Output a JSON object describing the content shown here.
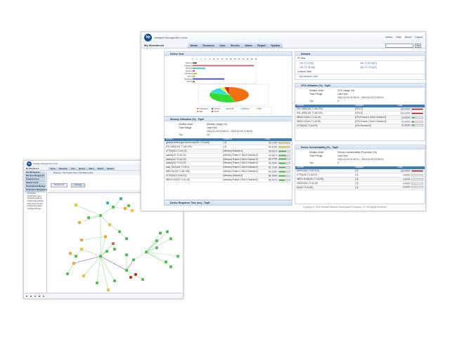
{
  "front": {
    "app_title": "Intelligent Management Center",
    "user_links": [
      "admin",
      "Help",
      "About",
      "Logout"
    ],
    "workbench": "My Workbench",
    "tabs": [
      "Home",
      "Resource",
      "User",
      "Service",
      "Alarm",
      "Report",
      "System"
    ],
    "search_button": "Go",
    "device_view": {
      "title": "Device View",
      "chart_data": {
        "type": "bar",
        "orientation": "horizontal",
        "categories": [
          "Routers",
          "Switches",
          "Servers",
          "Security",
          "Wireless",
          "Voice",
          "Desktops",
          "Others"
        ],
        "values": [
          2,
          29,
          6,
          1,
          2,
          1,
          15,
          1
        ],
        "xlim": [
          0,
          30
        ],
        "ticks": [
          0,
          2,
          4,
          6,
          8,
          10,
          12,
          14,
          16,
          18,
          20,
          22,
          24,
          26,
          28,
          30
        ],
        "colors": [
          "#555555",
          "#c06070",
          "#40c0c0",
          "#c040c0",
          "#c0c040",
          "#60c060",
          "#4040c0",
          "#c04040"
        ]
      },
      "pie": {
        "type": "pie",
        "slices": [
          {
            "name": "Major",
            "value": 45,
            "color": "#f07010"
          },
          {
            "name": "Normal",
            "value": 35,
            "color": "#30dd30"
          },
          {
            "name": "Warning",
            "value": 12,
            "color": "#30e0e0"
          },
          {
            "name": "Minor",
            "value": 4,
            "color": "#f0f040"
          },
          {
            "name": "Critical",
            "value": 4,
            "color": "#e02020"
          }
        ]
      },
      "legend": [
        {
          "name": "Unmanaged",
          "color": "#888888"
        },
        {
          "name": "Unknown",
          "color": "#3030c0"
        },
        {
          "name": "Normal",
          "color": "#30dd30"
        },
        {
          "name": "Warning",
          "color": "#30e0e0"
        },
        {
          "name": "Minor",
          "color": "#f0f040"
        },
        {
          "name": "Major",
          "color": "#f07010"
        },
        {
          "name": "Critical",
          "color": "#e02020"
        }
      ]
    },
    "memory": {
      "title": "Memory Utilization (%) - TopN",
      "monitor_label": "Monitor Index",
      "monitor": "Memory Usage (%)",
      "range_label": "Time Range",
      "range": "Last Hour",
      "range_detail": "2010-11-03 11:00:01 - 2010-11-03 12:00:01",
      "top_label": "Top",
      "top": "10",
      "columns": [
        "Device",
        "Instance",
        "Data"
      ],
      "rows": [
        [
          "globalz.fedora.gov.3com.com(161.71.64.84)",
          "[-3]",
          "92.179%",
          92.2
        ],
        [
          "ESL-MDS(161.71.64.200)",
          "[-3]",
          "90.523%",
          90.5
        ],
        [
          "s7700(161.71.64.22)",
          "[Memory:Subslot:4]",
          "68.951%",
          69
        ],
        [
          "pasta(161.71.64.23)",
          "[Memory:Frame:1 Slot:0 Subslot:0]",
          "67.661%",
          67.7
        ],
        [
          "pasta(161.71.64.23)",
          "[Memory:Frame:3 Slot:0 Subslot:0]",
          "64.675%",
          64.7
        ],
        [
          "pasta(161.71.64.23)",
          "[Memory:Frame:2 Slot:0 Subslot:0]",
          "63.263%",
          63.3
        ],
        [
          "sara_55.2(161.71.78.1)",
          "[Memory:Frame:1 Slot:0 Subslot:0]",
          "61.723%",
          61.7
        ],
        [
          "5500-EI(161.71.64.198)",
          "[Memory:Frame:1 Slot:0 Subslot:0]",
          "60.333%",
          60.3
        ],
        [
          "s7700(161.71.64.22)",
          "[Memory:Subslot:5]",
          "56.784%",
          56.8
        ],
        [
          "5500G-EI(161.71.64.24)",
          "[Memory:Frame:2 Slot:0 Subslot:0]",
          "55.267%",
          55.3
        ]
      ]
    },
    "response_title": "Device Response Time (ms) - TopN",
    "network": {
      "title": "Network",
      "ip_view": "IP View",
      "ips": [
        "161.71.0.0[3]",
        "161.71.64.0[47]",
        "161.71.78.0[6]",
        "161.71.79.0[21]"
      ],
      "custom_view": "Custom View",
      "custom": "My Network View"
    },
    "cpu": {
      "title": "CPU Utilization (%) - TopN",
      "monitor_label": "Monitor Index",
      "monitor": "CPU Usage (%)",
      "range_label": "Time Range",
      "range": "Last Hour",
      "range_detail": "2010-11-03 11:00:01 - 2010-11-03 12:00:01",
      "top_label": "Top",
      "top": "5",
      "columns": [
        "Device",
        "Instance",
        "Data"
      ],
      "rows": [
        [
          "ESL-MDS(161.71.64.200)",
          "[CPU:2]",
          "100.000%",
          100
        ],
        [
          "ESL-MDS(161.71.64.200)",
          "[CPU:3]",
          "100.000%",
          100
        ],
        [
          "5500G-EI(161.71.64.24)",
          "[CPU:Frame:2 Slot:0 Subslot:0]",
          "23.833%",
          23.8
        ],
        [
          "5500G-EI(161.71.64.24)",
          "[CPU:Frame:1 Slot:0 Subslot:0]",
          "22.000%",
          22
        ],
        [
          "s7700(161.71.64.22)",
          "[CPU:Subslot:5]",
          "21.833%",
          21.8
        ]
      ]
    },
    "unreach": {
      "title": "Device Unreachability (%) - TopN",
      "monitor_label": "Monitor Index",
      "monitor": "Device Unreachability Proportion (%)",
      "range_label": "Time Range",
      "range": "Last Hour",
      "range_detail": "2010-11-03 11:00:01 - 2010-11-03 12:00:01",
      "top_label": "Top",
      "top": "5",
      "columns": [
        "Device",
        "Instance",
        "Data"
      ],
      "rows": [
        [
          "NMSG(161.71.64.101)",
          "[-3]",
          "100.000%",
          100
        ],
        [
          "s7700(161.71.64.22)",
          "[-3]",
          "0.000%",
          0
        ],
        [
          "4800 L3LAB(161.71.64.50)",
          "[-3]",
          "0.000%",
          0
        ],
        [
          "4200G(161.71.64.42)",
          "[-3]",
          "0.000%",
          0
        ],
        [
          "i3(161.71.64.52)",
          "[-3]",
          "0.000%",
          0
        ]
      ]
    },
    "footer": "Copyright © 2010 Hewlett-Packard Development Company, L.P. All Rights Reserved."
  },
  "back": {
    "app_title": "Intelligent Management Center",
    "workbench": "My Workbench",
    "tabs": [
      "Home",
      "Resource",
      "User",
      "Service",
      "Alarm",
      "Report",
      "System"
    ],
    "side_groups": [
      "Res Management",
      "Resource Management",
      "Terminal Access",
      "Network Assets",
      "Virtual Network Manager",
      "Performance Management"
    ],
    "side_items": [
      "Quick Start",
      "Performance View",
      "Monitoring Settings",
      "Global Index Settings",
      "Data Source & Tools",
      "Performance Option",
      "Templates Browse"
    ],
    "breadcrumb": "Resource > My Custom View > My Network View",
    "view_tabs": [
      "Network List",
      "Topology"
    ]
  }
}
